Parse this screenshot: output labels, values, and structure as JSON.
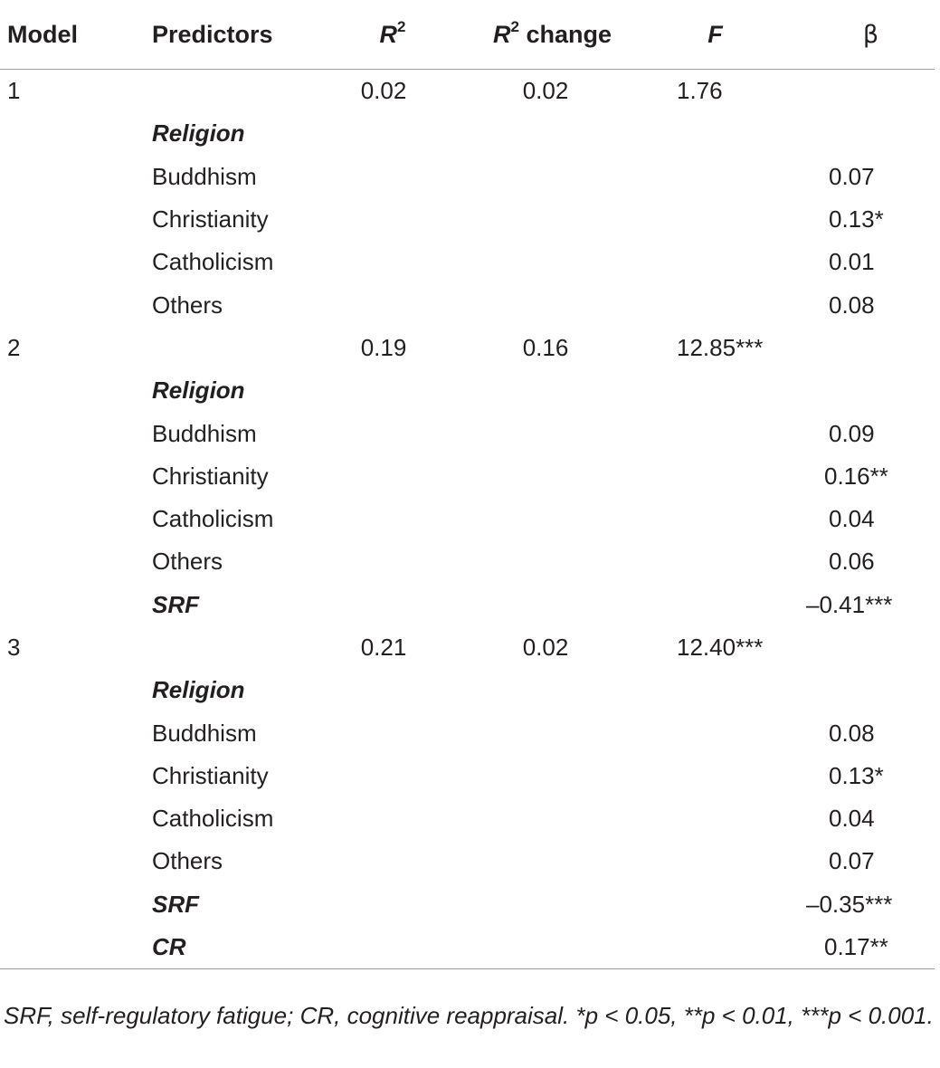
{
  "table": {
    "headers": {
      "model": "Model",
      "predictors": "Predictors",
      "r2_base": "R",
      "r2_sup": "2",
      "r2change_base": "R",
      "r2change_sup": "2",
      "r2change_rest": " change",
      "f": "F",
      "beta": "β"
    },
    "rows": [
      {
        "model": "1",
        "pred": "",
        "r2": "0.02",
        "r2c": "0.02",
        "f": "1.76",
        "beta": ""
      },
      {
        "model": "",
        "pred": "Religion",
        "r2": "",
        "r2c": "",
        "f": "",
        "beta": ""
      },
      {
        "model": "",
        "pred": "Buddhism",
        "r2": "",
        "r2c": "",
        "f": "",
        "beta": "0.07"
      },
      {
        "model": "",
        "pred": "Christianity",
        "r2": "",
        "r2c": "",
        "f": "",
        "beta": "0.13*"
      },
      {
        "model": "",
        "pred": "Catholicism",
        "r2": "",
        "r2c": "",
        "f": "",
        "beta": "0.01"
      },
      {
        "model": "",
        "pred": "Others",
        "r2": "",
        "r2c": "",
        "f": "",
        "beta": "0.08"
      },
      {
        "model": "2",
        "pred": "",
        "r2": "0.19",
        "r2c": "0.16",
        "f": "12.85***",
        "beta": ""
      },
      {
        "model": "",
        "pred": "Religion",
        "r2": "",
        "r2c": "",
        "f": "",
        "beta": ""
      },
      {
        "model": "",
        "pred": "Buddhism",
        "r2": "",
        "r2c": "",
        "f": "",
        "beta": "0.09"
      },
      {
        "model": "",
        "pred": "Christianity",
        "r2": "",
        "r2c": "",
        "f": "",
        "beta": "0.16**"
      },
      {
        "model": "",
        "pred": "Catholicism",
        "r2": "",
        "r2c": "",
        "f": "",
        "beta": "0.04"
      },
      {
        "model": "",
        "pred": "Others",
        "r2": "",
        "r2c": "",
        "f": "",
        "beta": "0.06"
      },
      {
        "model": "",
        "pred": "SRF",
        "r2": "",
        "r2c": "",
        "f": "",
        "beta": "–0.41***"
      },
      {
        "model": "3",
        "pred": "",
        "r2": "0.21",
        "r2c": "0.02",
        "f": "12.40***",
        "beta": ""
      },
      {
        "model": "",
        "pred": "Religion",
        "r2": "",
        "r2c": "",
        "f": "",
        "beta": ""
      },
      {
        "model": "",
        "pred": "Buddhism",
        "r2": "",
        "r2c": "",
        "f": "",
        "beta": "0.08"
      },
      {
        "model": "",
        "pred": "Christianity",
        "r2": "",
        "r2c": "",
        "f": "",
        "beta": "0.13*"
      },
      {
        "model": "",
        "pred": "Catholicism",
        "r2": "",
        "r2c": "",
        "f": "",
        "beta": "0.04"
      },
      {
        "model": "",
        "pred": "Others",
        "r2": "",
        "r2c": "",
        "f": "",
        "beta": "0.07"
      },
      {
        "model": "",
        "pred": "SRF",
        "r2": "",
        "r2c": "",
        "f": "",
        "beta": "–0.35***"
      },
      {
        "model": "",
        "pred": "CR",
        "r2": "",
        "r2c": "",
        "f": "",
        "beta": "0.17**"
      }
    ]
  },
  "footnote": "SRF, self-regulatory fatigue; CR, cognitive reappraisal. *p < 0.05, **p < 0.01, ***p < 0.001."
}
